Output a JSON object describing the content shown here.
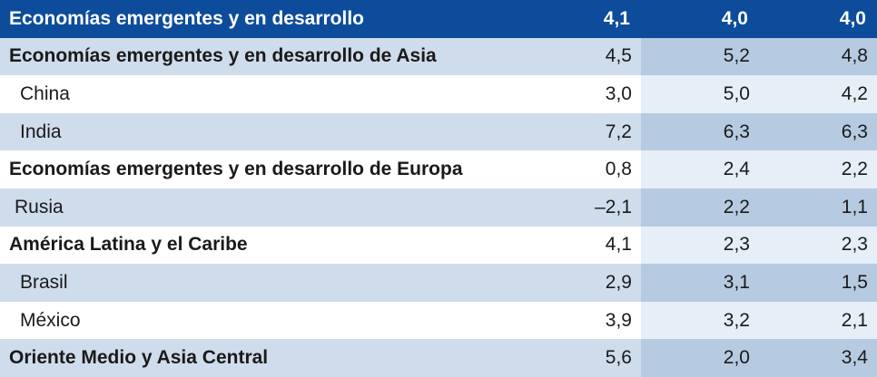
{
  "table": {
    "header": {
      "label": "Economías emergentes y en desarrollo",
      "values": [
        "4,1",
        "4,0",
        "4,0"
      ]
    },
    "rows": [
      {
        "label": "Economías emergentes y en desarrollo de Asia",
        "values": [
          "4,5",
          "5,2",
          "4,8"
        ],
        "level": "group"
      },
      {
        "label": "China",
        "values": [
          "3,0",
          "5,0",
          "4,2"
        ],
        "level": "sub"
      },
      {
        "label": "India",
        "values": [
          "7,2",
          "6,3",
          "6,3"
        ],
        "level": "sub"
      },
      {
        "label": "Economías emergentes y en desarrollo de Europa",
        "values": [
          "0,8",
          "2,4",
          "2,2"
        ],
        "level": "group"
      },
      {
        "label": "Rusia",
        "values": [
          "–2,1",
          "2,2",
          "1,1"
        ],
        "level": "sub"
      },
      {
        "label": "América Latina y el Caribe",
        "values": [
          "4,1",
          "2,3",
          "2,3"
        ],
        "level": "group"
      },
      {
        "label": "Brasil",
        "values": [
          "2,9",
          "3,1",
          "1,5"
        ],
        "level": "sub"
      },
      {
        "label": "México",
        "values": [
          "3,9",
          "3,2",
          "2,1"
        ],
        "level": "sub"
      },
      {
        "label": "Oriente Medio y Asia Central",
        "values": [
          "5,6",
          "2,0",
          "3,4"
        ],
        "level": "group"
      }
    ]
  }
}
